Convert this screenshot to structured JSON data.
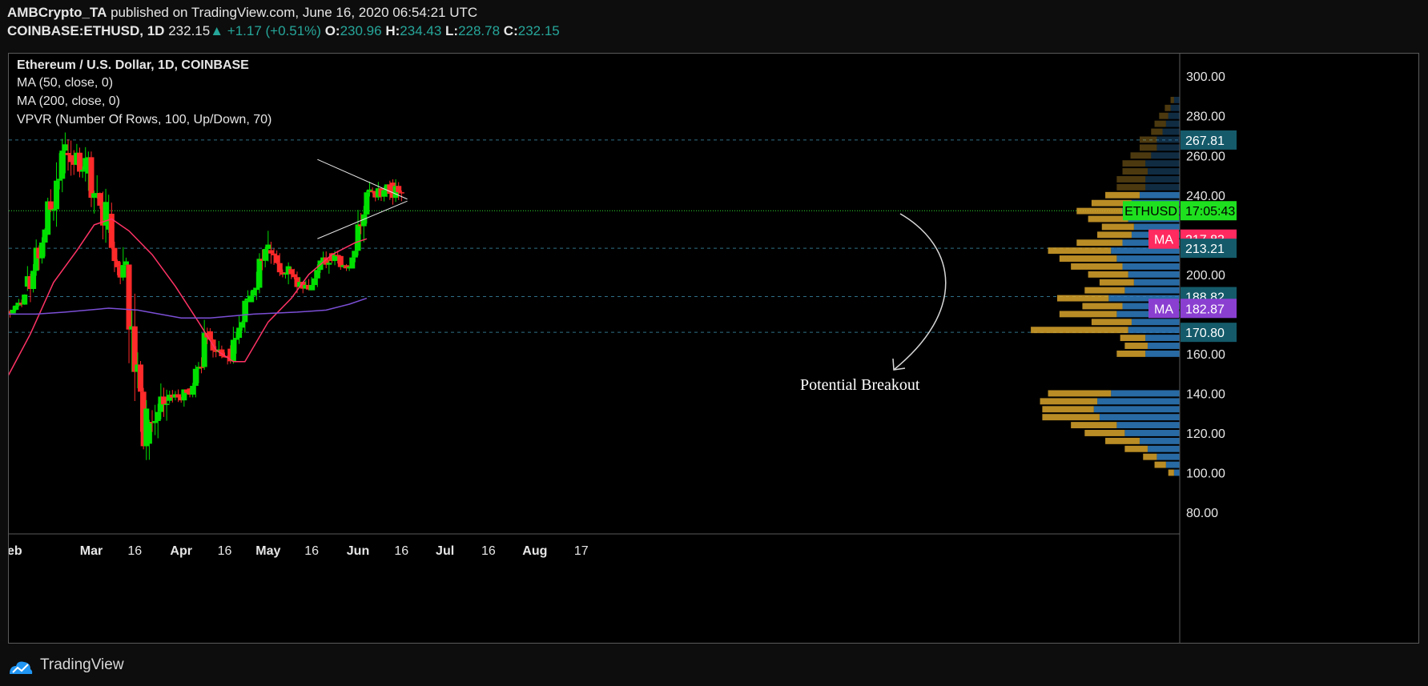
{
  "header": {
    "publisher": "AMBCrypto_TA",
    "published_text": "published on TradingView.com, June 16, 2020 06:54:21 UTC",
    "symbol": "COINBASE:ETHUSD, 1D",
    "last": "232.15",
    "change": "+1.17 (+0.51%)",
    "o_label": "O:",
    "o": "230.96",
    "h_label": "H:",
    "h": "234.43",
    "l_label": "L:",
    "l": "228.78",
    "c_label": "C:",
    "c": "232.15"
  },
  "legend": {
    "title": "Ethereum / U.S. Dollar, 1D, COINBASE",
    "ma50": "MA (50, close, 0)",
    "ma200": "MA (200, close, 0)",
    "vpvr": "VPVR (Number Of Rows, 100, Up/Down, 70)"
  },
  "annotation": "Potential Breakout",
  "footer": {
    "brand": "TradingView"
  },
  "colors": {
    "up": "#00e000",
    "down": "#ff2a2a",
    "ma50": "#ff3366",
    "ma200": "#7b4fd6",
    "vp_up": "#2f7dc0",
    "vp_down": "#d9a42c",
    "price_tag": "#1fe01f",
    "level_tag": "#145a6a",
    "ma50_tag": "#ff2a5f",
    "ma200_tag": "#8a3fd1"
  },
  "chart_data": {
    "type": "candlestick",
    "y_axis": {
      "ticks": [
        300,
        280,
        260,
        240,
        200,
        160,
        140,
        120,
        100,
        80
      ],
      "range": [
        72,
        312
      ]
    },
    "x_axis": {
      "labels": [
        "eb",
        "Mar",
        "16",
        "Apr",
        "16",
        "May",
        "16",
        "Jun",
        "16",
        "Jul",
        "16",
        "Aug",
        "17"
      ],
      "label_dates": [
        "2020-02-01",
        "2020-03-01",
        "2020-03-16",
        "2020-04-01",
        "2020-04-16",
        "2020-05-01",
        "2020-05-16",
        "2020-06-01",
        "2020-06-16",
        "2020-07-01",
        "2020-07-16",
        "2020-08-01",
        "2020-08-17"
      ]
    },
    "grid": false,
    "price_tags": [
      {
        "label": "ETHUSD",
        "value": "17:05:43",
        "price": 232.15,
        "kind": "last"
      },
      {
        "label": "MA",
        "value": "217.83",
        "price": 217.83,
        "kind": "ma50"
      },
      {
        "label": "",
        "value": "213.21",
        "price": 213.21,
        "kind": "level"
      },
      {
        "label": "",
        "value": "267.81",
        "price": 267.81,
        "kind": "level"
      },
      {
        "label": "",
        "value": "188.82",
        "price": 188.82,
        "kind": "level"
      },
      {
        "label": "MA",
        "value": "182.87",
        "price": 182.87,
        "kind": "ma200"
      },
      {
        "label": "",
        "value": "170.80",
        "price": 170.8,
        "kind": "level"
      }
    ],
    "horizontal_levels": [
      267.81,
      213.21,
      188.82,
      170.8
    ],
    "ohlc_weekly_approx": [
      {
        "date": "2020-02-01",
        "o": 180,
        "h": 190,
        "l": 176,
        "c": 188
      },
      {
        "date": "2020-02-08",
        "o": 188,
        "h": 224,
        "l": 186,
        "c": 222
      },
      {
        "date": "2020-02-15",
        "o": 222,
        "h": 288,
        "l": 220,
        "c": 262
      },
      {
        "date": "2020-02-22",
        "o": 262,
        "h": 278,
        "l": 238,
        "c": 255
      },
      {
        "date": "2020-02-29",
        "o": 255,
        "h": 262,
        "l": 212,
        "c": 228
      },
      {
        "date": "2020-03-07",
        "o": 228,
        "h": 252,
        "l": 195,
        "c": 200
      },
      {
        "date": "2020-03-14",
        "o": 200,
        "h": 205,
        "l": 90,
        "c": 122
      },
      {
        "date": "2020-03-21",
        "o": 122,
        "h": 145,
        "l": 100,
        "c": 136
      },
      {
        "date": "2020-03-28",
        "o": 136,
        "h": 142,
        "l": 126,
        "c": 140
      },
      {
        "date": "2020-04-04",
        "o": 140,
        "h": 178,
        "l": 138,
        "c": 168
      },
      {
        "date": "2020-04-11",
        "o": 168,
        "h": 176,
        "l": 152,
        "c": 158
      },
      {
        "date": "2020-04-18",
        "o": 158,
        "h": 192,
        "l": 155,
        "c": 188
      },
      {
        "date": "2020-04-25",
        "o": 188,
        "h": 228,
        "l": 186,
        "c": 212
      },
      {
        "date": "2020-05-02",
        "o": 212,
        "h": 218,
        "l": 190,
        "c": 200
      },
      {
        "date": "2020-05-09",
        "o": 200,
        "h": 206,
        "l": 182,
        "c": 194
      },
      {
        "date": "2020-05-16",
        "o": 194,
        "h": 216,
        "l": 192,
        "c": 210
      },
      {
        "date": "2020-05-23",
        "o": 210,
        "h": 215,
        "l": 195,
        "c": 205
      },
      {
        "date": "2020-05-30",
        "o": 205,
        "h": 250,
        "l": 203,
        "c": 240
      },
      {
        "date": "2020-06-06",
        "o": 240,
        "h": 252,
        "l": 230,
        "c": 244
      },
      {
        "date": "2020-06-13",
        "o": 244,
        "h": 248,
        "l": 223,
        "c": 232
      }
    ],
    "ma50_points": [
      [
        0,
        148
      ],
      [
        8,
        170
      ],
      [
        16,
        196
      ],
      [
        24,
        212
      ],
      [
        30,
        225
      ],
      [
        36,
        228
      ],
      [
        42,
        222
      ],
      [
        50,
        210
      ],
      [
        58,
        194
      ],
      [
        66,
        176
      ],
      [
        72,
        162
      ],
      [
        78,
        156
      ],
      [
        82,
        156
      ],
      [
        90,
        176
      ],
      [
        98,
        188
      ],
      [
        104,
        200
      ],
      [
        112,
        210
      ],
      [
        120,
        216
      ],
      [
        124,
        218
      ]
    ],
    "ma200_points": [
      [
        0,
        180
      ],
      [
        10,
        180
      ],
      [
        20,
        181
      ],
      [
        35,
        183
      ],
      [
        45,
        182
      ],
      [
        60,
        178
      ],
      [
        70,
        178
      ],
      [
        85,
        180
      ],
      [
        100,
        181
      ],
      [
        110,
        182
      ],
      [
        118,
        185
      ],
      [
        124,
        188
      ]
    ],
    "triangle": {
      "upper": [
        [
          107,
          258
        ],
        [
          138,
          238
        ]
      ],
      "lower": [
        [
          107,
          218
        ],
        [
          138,
          237
        ]
      ]
    },
    "vpvr": {
      "bins_price": [
        100,
        104,
        108,
        112,
        116,
        120,
        124,
        128,
        132,
        136,
        140,
        160,
        164,
        168,
        172,
        176,
        180,
        184,
        188,
        192,
        196,
        200,
        204,
        208,
        212,
        216,
        220,
        224,
        228,
        232,
        236,
        240,
        244,
        248,
        252,
        256,
        260,
        264,
        268,
        272,
        276,
        280,
        284,
        288
      ],
      "up_rel": [
        0.05,
        0.12,
        0.2,
        0.28,
        0.35,
        0.48,
        0.55,
        0.7,
        0.75,
        0.72,
        0.6,
        0.3,
        0.28,
        0.3,
        0.45,
        0.42,
        0.55,
        0.5,
        0.62,
        0.48,
        0.4,
        0.45,
        0.5,
        0.55,
        0.6,
        0.5,
        0.42,
        0.4,
        0.45,
        0.5,
        0.42,
        0.35,
        0.3,
        0.3,
        0.28,
        0.3,
        0.25,
        0.2,
        0.2,
        0.15,
        0.12,
        0.1,
        0.08,
        0.05
      ],
      "down_rel": [
        0.05,
        0.1,
        0.12,
        0.2,
        0.3,
        0.35,
        0.4,
        0.5,
        0.45,
        0.5,
        0.55,
        0.25,
        0.2,
        0.22,
        0.85,
        0.35,
        0.5,
        0.35,
        0.45,
        0.35,
        0.3,
        0.35,
        0.45,
        0.5,
        0.55,
        0.4,
        0.3,
        0.28,
        0.35,
        0.4,
        0.35,
        0.3,
        0.25,
        0.25,
        0.22,
        0.2,
        0.18,
        0.15,
        0.15,
        0.1,
        0.1,
        0.08,
        0.05,
        0.03
      ]
    }
  }
}
